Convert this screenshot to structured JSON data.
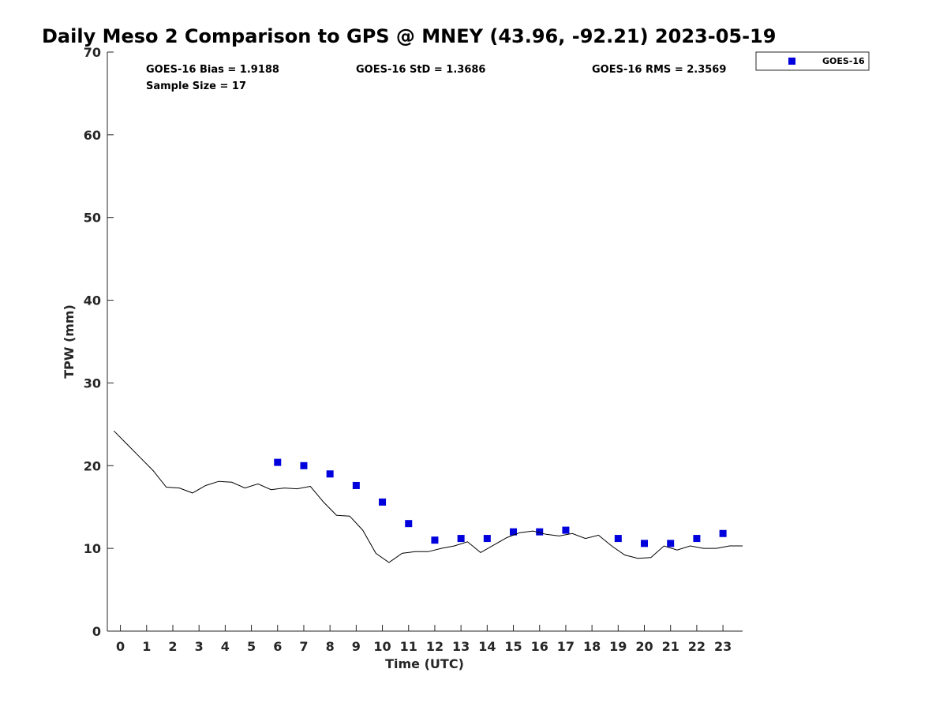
{
  "chart_data": {
    "type": "scatter",
    "title": "Daily Meso 2 Comparison to GPS @ MNEY (43.96, -92.21) 2023-05-19",
    "xlabel": "Time (UTC)",
    "ylabel": "TPW (mm)",
    "xlim": [
      -0.5,
      23.75
    ],
    "ylim": [
      0,
      70
    ],
    "x_ticks": [
      "0",
      "1",
      "2",
      "3",
      "4",
      "5",
      "6",
      "7",
      "8",
      "9",
      "10",
      "11",
      "12",
      "13",
      "14",
      "15",
      "16",
      "17",
      "18",
      "19",
      "20",
      "21",
      "22",
      "23"
    ],
    "y_ticks": [
      "0",
      "10",
      "20",
      "30",
      "40",
      "50",
      "60",
      "70"
    ],
    "grid": false,
    "legend_position": "top-right, outside",
    "stats": {
      "bias": "GOES-16 Bias = 1.9188",
      "std": "GOES-16 StD = 1.3686",
      "rms": "GOES-16 RMS = 2.3569",
      "sample_size": "Sample Size = 17"
    },
    "series": [
      {
        "name": "GOES-16",
        "kind": "scatter",
        "marker": "square",
        "color": "#0000dd",
        "x": [
          6,
          7,
          8,
          9,
          10,
          11,
          12,
          13,
          14,
          15,
          16,
          17,
          19,
          20,
          21,
          22,
          23
        ],
        "y": [
          20.4,
          20.0,
          19.0,
          17.6,
          15.6,
          13.0,
          11.0,
          11.2,
          11.2,
          12.0,
          12.0,
          12.2,
          11.2,
          10.6,
          10.6,
          11.2,
          11.8
        ]
      },
      {
        "kind": "line",
        "color": "#000000",
        "x": [
          -0.25,
          0.25,
          0.75,
          1.25,
          1.75,
          2.25,
          2.75,
          3.25,
          3.75,
          4.25,
          4.75,
          5.25,
          5.75,
          6.25,
          6.75,
          7.25,
          7.75,
          8.25,
          8.75,
          9.25,
          9.75,
          10.25,
          10.75,
          11.25,
          11.75,
          12.25,
          12.75,
          13.25,
          13.75,
          14.25,
          14.75,
          15.25,
          15.75,
          16.25,
          16.75,
          17.25,
          17.75,
          18.25,
          18.75,
          19.25,
          19.75,
          20.25,
          20.75,
          21.25,
          21.75,
          22.25,
          22.75,
          23.25,
          23.75
        ],
        "y": [
          24.2,
          22.6,
          21.0,
          19.4,
          17.4,
          17.3,
          16.7,
          17.6,
          18.1,
          18.0,
          17.3,
          17.8,
          17.1,
          17.3,
          17.2,
          17.5,
          15.6,
          14.0,
          13.9,
          12.2,
          9.4,
          8.3,
          9.4,
          9.6,
          9.6,
          10.0,
          10.3,
          10.8,
          9.5,
          10.4,
          11.3,
          11.9,
          12.1,
          11.7,
          11.5,
          11.8,
          11.2,
          11.6,
          10.3,
          9.2,
          8.8,
          8.9,
          10.3,
          9.8,
          10.3,
          10.0,
          10.0,
          10.3,
          10.3
        ]
      }
    ]
  }
}
